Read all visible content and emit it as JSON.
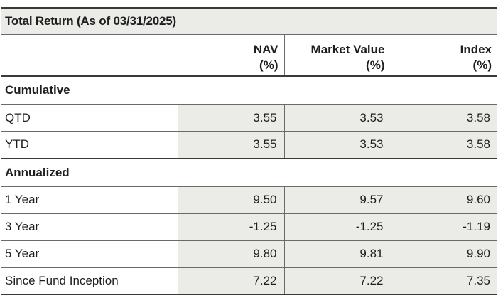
{
  "title": "Total Return (As of 03/31/2025)",
  "headers": {
    "nav_line1": "NAV",
    "nav_line2": "(%)",
    "mv_line1": "Market Value",
    "mv_line2": "(%)",
    "idx_line1": "Index",
    "idx_line2": "(%)"
  },
  "sections": [
    {
      "label": "Cumulative",
      "rows": [
        {
          "label": "QTD",
          "nav": "3.55",
          "mv": "3.53",
          "idx": "3.58"
        },
        {
          "label": "YTD",
          "nav": "3.55",
          "mv": "3.53",
          "idx": "3.58"
        }
      ]
    },
    {
      "label": "Annualized",
      "rows": [
        {
          "label": "1 Year",
          "nav": "9.50",
          "mv": "9.57",
          "idx": "9.60"
        },
        {
          "label": "3 Year",
          "nav": "-1.25",
          "mv": "-1.25",
          "idx": "-1.19"
        },
        {
          "label": "5 Year",
          "nav": "9.80",
          "mv": "9.81",
          "idx": "9.90"
        },
        {
          "label": "Since Fund Inception",
          "nav": "7.22",
          "mv": "7.22",
          "idx": "7.35"
        }
      ]
    }
  ]
}
